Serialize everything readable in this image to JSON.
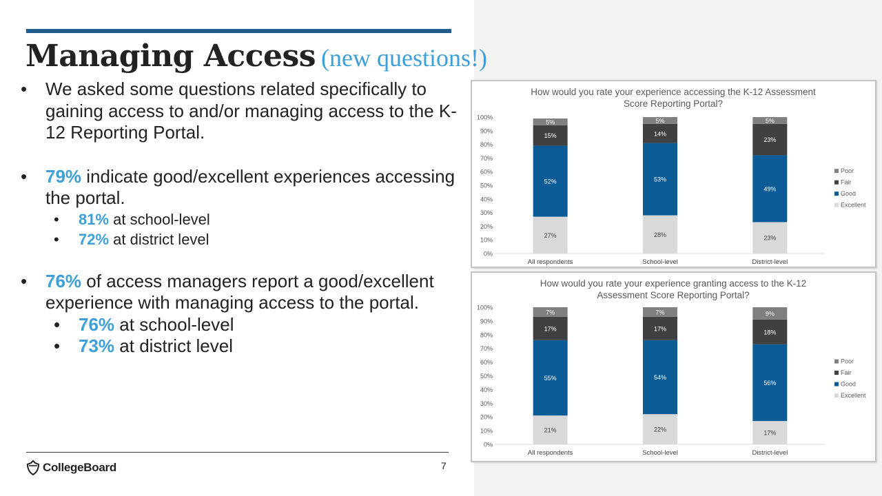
{
  "slide": {
    "title": "Managing Access",
    "subtitle": "(new questions!)",
    "bullet1": "We asked some questions related specifically to gaining access to and/or managing access to the K-12 Reporting Portal.",
    "bullet2_pct": "79%",
    "bullet2_text": "indicate good/excellent experiences accessing the portal.",
    "bullet2_sub1_pct": "81%",
    "bullet2_sub1_text": "at school-level",
    "bullet2_sub2_pct": "72%",
    "bullet2_sub2_text": "at district level",
    "bullet3_pct": "76%",
    "bullet3_text": "of access managers report a good/excellent experience with managing access to the portal.",
    "bullet3_sub1_pct": "76%",
    "bullet3_sub1_text": "at school-level",
    "bullet3_sub2_pct": "73%",
    "bullet3_sub2_text": "at district level",
    "logo": "CollegeBoard",
    "page_number": "7"
  },
  "colors": {
    "accent": "#3d9fd8",
    "rule": "#1f5d8c",
    "poor": "#7f7f7f",
    "fair": "#404040",
    "good": "#0b5b96",
    "excellent": "#d9d9d9"
  },
  "chart_data": [
    {
      "type": "bar",
      "stacked": true,
      "title_lines": [
        "How would you rate your experience accessing the K-12 Assessment",
        "Score Reporting Portal?"
      ],
      "categories": [
        "All respondents",
        "School-level",
        "District-level"
      ],
      "series": [
        {
          "name": "Excellent",
          "values": [
            27,
            28,
            23
          ]
        },
        {
          "name": "Good",
          "values": [
            52,
            53,
            49
          ]
        },
        {
          "name": "Fair",
          "values": [
            15,
            14,
            23
          ]
        },
        {
          "name": "Poor",
          "values": [
            5,
            5,
            5
          ]
        }
      ],
      "legend": [
        "Poor",
        "Fair",
        "Good",
        "Excellent"
      ],
      "legend_position": "right",
      "yticks": [
        "0%",
        "10%",
        "20%",
        "30%",
        "40%",
        "50%",
        "60%",
        "70%",
        "80%",
        "90%",
        "100%"
      ],
      "ylim": [
        0,
        100
      ]
    },
    {
      "type": "bar",
      "stacked": true,
      "title_lines": [
        "How would you rate your experience granting access to the K-12",
        "Assessment Score Reporting Portal?"
      ],
      "categories": [
        "All respondents",
        "School-level",
        "District-level"
      ],
      "series": [
        {
          "name": "Excellent",
          "values": [
            21,
            22,
            17
          ]
        },
        {
          "name": "Good",
          "values": [
            55,
            54,
            56
          ]
        },
        {
          "name": "Fair",
          "values": [
            17,
            17,
            18
          ]
        },
        {
          "name": "Poor",
          "values": [
            7,
            7,
            9
          ]
        }
      ],
      "legend": [
        "Poor",
        "Fair",
        "Good",
        "Excellent"
      ],
      "legend_position": "right",
      "yticks": [
        "0%",
        "10%",
        "20%",
        "30%",
        "40%",
        "50%",
        "60%",
        "70%",
        "80%",
        "90%",
        "100%"
      ],
      "ylim": [
        0,
        100
      ]
    }
  ]
}
